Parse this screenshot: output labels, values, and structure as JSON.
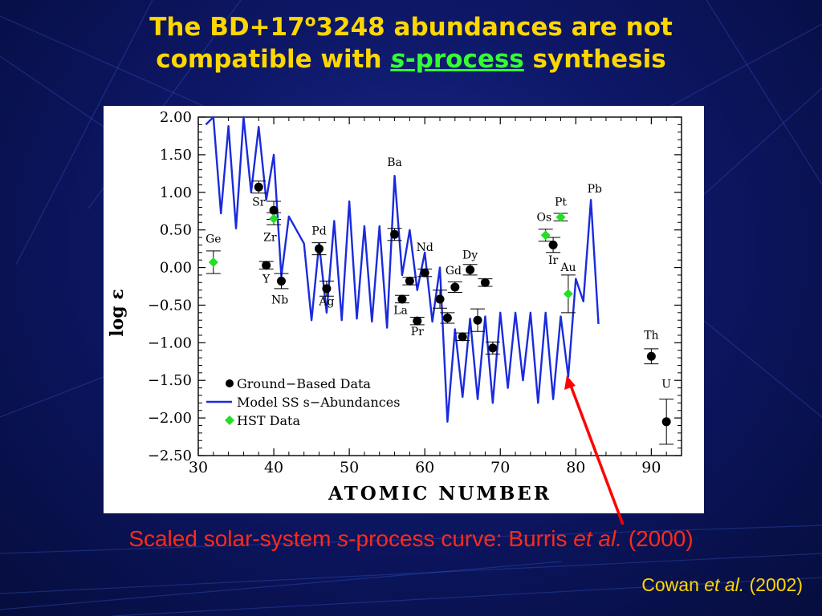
{
  "slide": {
    "title_line1_a": "The BD+17",
    "title_line1_sup": "o",
    "title_line1_b": "3248 abundances are not",
    "title_line2_a": "compatible with ",
    "title_line2_italic": "s",
    "title_line2_process": "-process",
    "title_line2_b": " synthesis",
    "caption_a": "Scaled solar-system ",
    "caption_italic": "s",
    "caption_b": "-process curve: Burris ",
    "caption_etal": "et al.",
    "caption_c": " (2000)",
    "credit_a": "Cowan ",
    "credit_etal": "et al.",
    "credit_b": " (2002)",
    "colors": {
      "background": "#0d1766",
      "title": "#ffd700",
      "title_highlight": "#33ff33",
      "caption": "#ff2a1a",
      "arrow": "#ff0000"
    }
  },
  "chart_data": {
    "type": "scatter",
    "xlabel": "ATOMIC NUMBER",
    "ylabel": "log ε",
    "xlim": [
      30,
      94
    ],
    "ylim": [
      -2.5,
      2.0
    ],
    "xticks": [
      "30",
      "40",
      "50",
      "60",
      "70",
      "80",
      "90"
    ],
    "yticks": [
      "2.00",
      "1.50",
      "1.00",
      "0.50",
      "0.00",
      "−0.50",
      "−1.00",
      "−1.50",
      "−2.00",
      "−2.50"
    ],
    "xtick_values": [
      30,
      40,
      50,
      60,
      70,
      80,
      90
    ],
    "ytick_values": [
      2.0,
      1.5,
      1.0,
      0.5,
      0.0,
      -0.5,
      -1.0,
      -1.5,
      -2.0,
      -2.5
    ],
    "legend": {
      "placement": "bottom-left",
      "entries": [
        "Ground−Based Data",
        "Model SS s−Abundances",
        "HST Data"
      ]
    },
    "series": [
      {
        "name": "Model SS s−Abundances",
        "kind": "line",
        "color": "#1a2bdb",
        "x": [
          31,
          32,
          33,
          34,
          35,
          36,
          37,
          38,
          39,
          40,
          41,
          42,
          43,
          44,
          45,
          46,
          47,
          48,
          49,
          50,
          51,
          52,
          53,
          54,
          55,
          56,
          57,
          58,
          59,
          60,
          61,
          62,
          63,
          64,
          65,
          66,
          67,
          68,
          69,
          70,
          71,
          72,
          73,
          74,
          75,
          76,
          77,
          78,
          79,
          80,
          81,
          82,
          83
        ],
        "y": [
          1.9,
          2.0,
          0.72,
          1.88,
          0.52,
          2.0,
          1.0,
          1.87,
          0.9,
          1.5,
          -0.12,
          0.68,
          0.5,
          0.32,
          -0.7,
          0.32,
          -0.6,
          0.62,
          -0.7,
          0.88,
          -0.68,
          0.55,
          -0.72,
          0.55,
          -0.8,
          1.22,
          -0.1,
          0.5,
          -0.3,
          0.2,
          -0.72,
          0.0,
          -2.05,
          -0.82,
          -1.72,
          -0.68,
          -1.75,
          -0.65,
          -1.8,
          -0.6,
          -1.6,
          -0.6,
          -1.5,
          -0.6,
          -1.8,
          -0.6,
          -1.75,
          -0.65,
          -1.45,
          -0.15,
          -0.45,
          0.9,
          -0.75
        ]
      },
      {
        "name": "Ground−Based Data",
        "kind": "points",
        "color": "#000000",
        "points": [
          {
            "x": 38,
            "y": 1.07,
            "err": 0.08
          },
          {
            "x": 39,
            "y": 0.03,
            "err": 0.05
          },
          {
            "x": 40,
            "y": 0.76,
            "err": 0.12
          },
          {
            "x": 41,
            "y": -0.18,
            "err": 0.1
          },
          {
            "x": 46,
            "y": 0.25,
            "err": 0.08
          },
          {
            "x": 47,
            "y": -0.28,
            "err": 0.1
          },
          {
            "x": 56,
            "y": 0.44,
            "err": 0.08
          },
          {
            "x": 57,
            "y": -0.42,
            "err": 0.05
          },
          {
            "x": 58,
            "y": -0.18,
            "err": 0.05
          },
          {
            "x": 59,
            "y": -0.71,
            "err": 0.05
          },
          {
            "x": 60,
            "y": -0.07,
            "err": 0.05
          },
          {
            "x": 62,
            "y": -0.42,
            "err": 0.12
          },
          {
            "x": 63,
            "y": -0.67,
            "err": 0.07
          },
          {
            "x": 64,
            "y": -0.26,
            "err": 0.07
          },
          {
            "x": 65,
            "y": -0.92,
            "err": 0.05
          },
          {
            "x": 66,
            "y": -0.03,
            "err": 0.07
          },
          {
            "x": 67,
            "y": -0.7,
            "err": 0.15
          },
          {
            "x": 68,
            "y": -0.2,
            "err": 0.05
          },
          {
            "x": 69,
            "y": -1.07,
            "err": 0.08
          },
          {
            "x": 77,
            "y": 0.3,
            "err": 0.1
          },
          {
            "x": 90,
            "y": -1.18,
            "err": 0.1
          },
          {
            "x": 92,
            "y": -2.05,
            "err": 0.3
          }
        ]
      },
      {
        "name": "HST Data",
        "kind": "points",
        "color": "#22e022",
        "points": [
          {
            "x": 32,
            "y": 0.07,
            "err": 0.15
          },
          {
            "x": 40,
            "y": 0.65,
            "err": 0.08
          },
          {
            "x": 76,
            "y": 0.43,
            "err": 0.08
          },
          {
            "x": 78,
            "y": 0.67,
            "err": 0.05
          },
          {
            "x": 79,
            "y": -0.35,
            "err": 0.25
          }
        ]
      }
    ],
    "element_labels": [
      {
        "text": "Ge",
        "x": 32,
        "y": 0.33
      },
      {
        "text": "Sr",
        "x": 38,
        "y": 0.82
      },
      {
        "text": "Zr",
        "x": 39.5,
        "y": 0.35
      },
      {
        "text": "Y",
        "x": 39,
        "y": -0.2
      },
      {
        "text": "Nb",
        "x": 40.8,
        "y": -0.48
      },
      {
        "text": "Pd",
        "x": 46,
        "y": 0.44
      },
      {
        "text": "Ag",
        "x": 47,
        "y": -0.5
      },
      {
        "text": "Ba",
        "x": 56,
        "y": 1.35
      },
      {
        "text": "La",
        "x": 56.8,
        "y": -0.62
      },
      {
        "text": "Nd",
        "x": 60,
        "y": 0.22
      },
      {
        "text": "Pr",
        "x": 59,
        "y": -0.9
      },
      {
        "text": "Gd",
        "x": 63.8,
        "y": -0.09
      },
      {
        "text": "Dy",
        "x": 66,
        "y": 0.12
      },
      {
        "text": "Os",
        "x": 75.8,
        "y": 0.62
      },
      {
        "text": "Pt",
        "x": 78,
        "y": 0.82
      },
      {
        "text": "Ir",
        "x": 77,
        "y": 0.05
      },
      {
        "text": "Au",
        "x": 79,
        "y": -0.05
      },
      {
        "text": "Pb",
        "x": 82.5,
        "y": 1.0
      },
      {
        "text": "Th",
        "x": 90,
        "y": -0.95
      },
      {
        "text": "U",
        "x": 92,
        "y": -1.6
      }
    ]
  }
}
